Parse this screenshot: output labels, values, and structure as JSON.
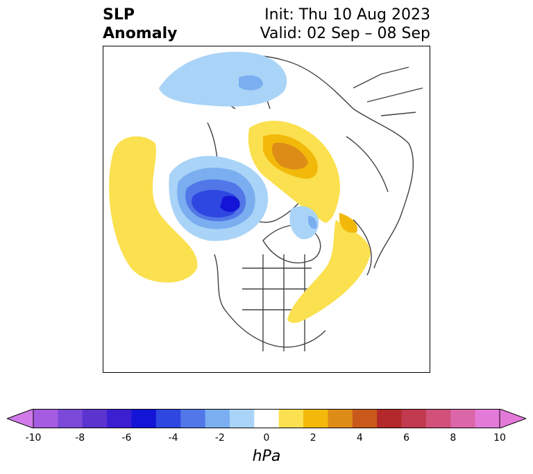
{
  "title": {
    "left_line1": "SLP",
    "left_line2": "Anomaly",
    "right_line1": "Init: Thu 10 Aug 2023",
    "right_line2": "Valid: 02 Sep – 08 Sep"
  },
  "colorbar": {
    "unit_label": "hPa",
    "tick_labels": [
      "-10",
      "-8",
      "-6",
      "-4",
      "-2",
      "0",
      "2",
      "4",
      "6",
      "8",
      "10"
    ],
    "levels": [
      -10,
      -9,
      -8,
      -7,
      -6,
      -5,
      -4,
      -3,
      -2,
      -1,
      1,
      2,
      3,
      4,
      5,
      6,
      7,
      8,
      9,
      10
    ],
    "colors": [
      "#a65ce0",
      "#7a49d8",
      "#5b33cf",
      "#3b1fd1",
      "#1414d6",
      "#2e47e0",
      "#5277e8",
      "#7aaef0",
      "#a9d4f7",
      "#ffffff",
      "#fbe04f",
      "#f2b90a",
      "#de8c18",
      "#c9591b",
      "#b3282a",
      "#c23a4f",
      "#d1517a",
      "#db66a8",
      "#e47ad8"
    ],
    "extend_low_color": "#cf7ae8",
    "extend_high_color": "#e47ad8"
  },
  "colors": {
    "background": "#ffffff",
    "coast": "#404040"
  }
}
